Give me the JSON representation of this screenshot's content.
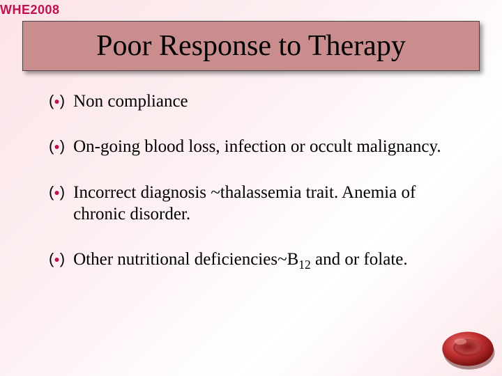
{
  "corner_label": "WHE2008",
  "title": "Poor Response to Therapy",
  "bullets": [
    {
      "text": "Non compliance"
    },
    {
      "text": "On-going blood loss, infection or occult malignancy."
    },
    {
      "text": "Incorrect diagnosis ~thalassemia trait. Anemia of chronic disorder."
    },
    {
      "text_html": "Other nutritional deficiencies~B<span class='sub'>12</span> and or folate."
    }
  ],
  "colors": {
    "accent": "#c01050",
    "title_bg": "#c98d8d",
    "bg_grad_start": "#fce4e8",
    "bg_grad_end": "#ffffff"
  },
  "cell": {
    "outer": "#a01818",
    "inner": "#d85050",
    "shadow": "#5c0c0c"
  }
}
